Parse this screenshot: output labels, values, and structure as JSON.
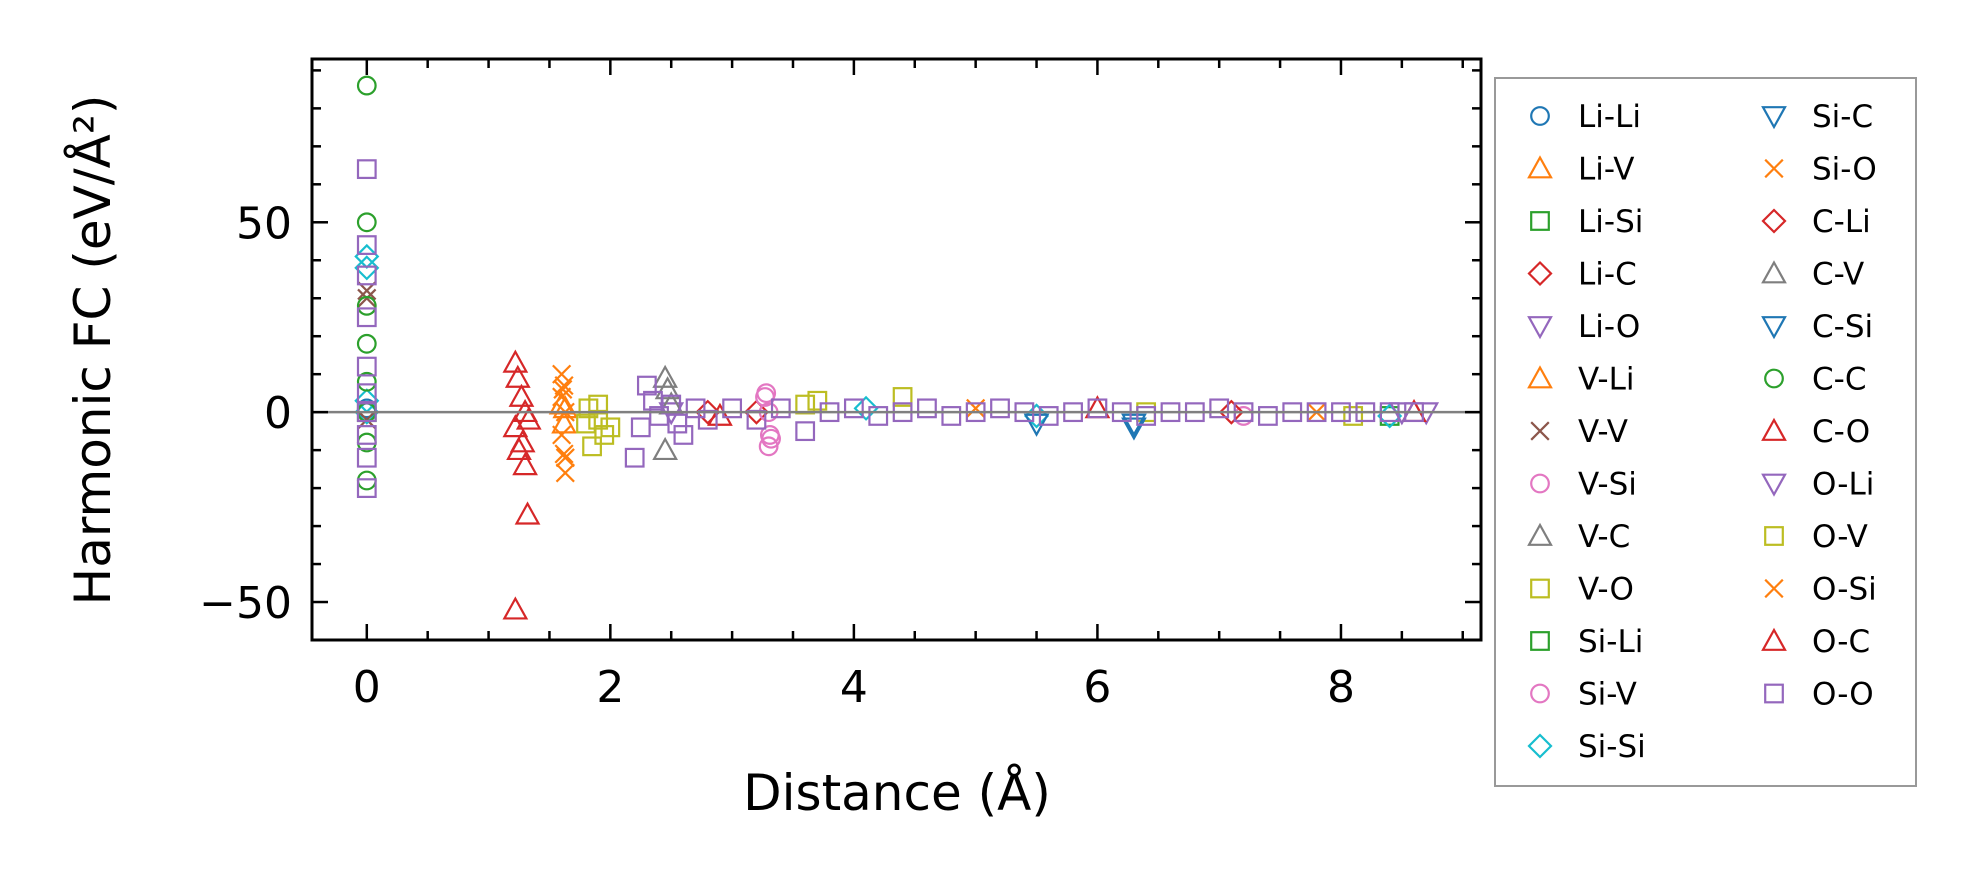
{
  "chart_data": {
    "type": "scatter",
    "xlabel": "Distance (Å)",
    "ylabel": "Harmonic FC (eV/Å²)",
    "xlim": [
      -0.45,
      9.15
    ],
    "ylim": [
      -60,
      93
    ],
    "xticks": [
      0,
      2,
      4,
      6,
      8
    ],
    "xtick_labels": [
      "0",
      "2",
      "4",
      "6",
      "8"
    ],
    "yticks": [
      -50,
      0,
      50
    ],
    "ytick_labels": [
      "−50",
      "0",
      "50"
    ],
    "grid": false,
    "zero_line": true,
    "legend_position": "outside-right",
    "series": [
      {
        "name": "Li-Li",
        "marker": "circle",
        "color": "#1f77b4",
        "points": [
          [
            0,
            0
          ],
          [
            0,
            1
          ]
        ]
      },
      {
        "name": "Li-V",
        "marker": "triangle-up",
        "color": "#ff7f0e",
        "points": [
          [
            1.6,
            2
          ],
          [
            1.62,
            -3
          ]
        ]
      },
      {
        "name": "Li-Si",
        "marker": "square",
        "color": "#2ca02c",
        "points": [
          [
            0,
            0
          ]
        ]
      },
      {
        "name": "Li-C",
        "marker": "diamond",
        "color": "#d62728",
        "points": [
          [
            2.8,
            0
          ],
          [
            3.2,
            0
          ]
        ]
      },
      {
        "name": "Li-O",
        "marker": "triangle-down",
        "color": "#9467bd",
        "points": [
          [
            2.5,
            0
          ],
          [
            8.7,
            0
          ]
        ]
      },
      {
        "name": "V-Li",
        "marker": "triangle-up",
        "color": "#ff7f0e",
        "points": [
          [
            1.63,
            1
          ]
        ]
      },
      {
        "name": "V-V",
        "marker": "x",
        "color": "#8c564b",
        "points": [
          [
            0,
            32
          ],
          [
            0,
            30
          ],
          [
            0,
            -2
          ]
        ]
      },
      {
        "name": "V-Si",
        "marker": "circle",
        "color": "#e377c2",
        "points": [
          [
            3.28,
            5
          ],
          [
            3.3,
            -9
          ],
          [
            3.31,
            -6
          ],
          [
            3.3,
            0
          ],
          [
            7.2,
            -1
          ]
        ]
      },
      {
        "name": "V-C",
        "marker": "triangle-up",
        "color": "#7f7f7f",
        "points": [
          [
            2.45,
            9
          ],
          [
            2.45,
            -10
          ],
          [
            2.5,
            2
          ]
        ]
      },
      {
        "name": "V-O",
        "marker": "square",
        "color": "#bcbd22",
        "points": [
          [
            1.8,
            -3
          ],
          [
            1.85,
            -9
          ],
          [
            1.9,
            2
          ],
          [
            1.95,
            -6
          ],
          [
            2.0,
            -4
          ],
          [
            1.82,
            1
          ],
          [
            3.7,
            3
          ],
          [
            4.4,
            4
          ],
          [
            6.4,
            0
          ],
          [
            8.1,
            -1
          ]
        ]
      },
      {
        "name": "Si-Li",
        "marker": "square",
        "color": "#2ca02c",
        "points": [
          [
            8.4,
            -1
          ]
        ]
      },
      {
        "name": "Si-V",
        "marker": "circle",
        "color": "#e377c2",
        "points": [
          [
            3.27,
            4
          ],
          [
            3.32,
            -7
          ]
        ]
      },
      {
        "name": "Si-Si",
        "marker": "diamond",
        "color": "#17becf",
        "points": [
          [
            0,
            41
          ],
          [
            0,
            38
          ],
          [
            0,
            3
          ],
          [
            0,
            0
          ],
          [
            4.1,
            1
          ],
          [
            5.5,
            -1
          ],
          [
            8.4,
            -1
          ]
        ]
      },
      {
        "name": "Si-C",
        "marker": "triangle-down",
        "color": "#1f77b4",
        "points": [
          [
            5.5,
            -3
          ],
          [
            6.3,
            -4
          ]
        ]
      },
      {
        "name": "Si-O",
        "marker": "x",
        "color": "#ff7f0e",
        "points": [
          [
            1.6,
            10
          ],
          [
            1.62,
            7
          ],
          [
            1.6,
            4
          ],
          [
            1.63,
            0
          ],
          [
            1.6,
            -6
          ],
          [
            1.62,
            -11
          ],
          [
            1.63,
            -16
          ],
          [
            5.0,
            1
          ],
          [
            7.8,
            0
          ]
        ]
      },
      {
        "name": "C-Li",
        "marker": "diamond",
        "color": "#d62728",
        "points": [
          [
            7.1,
            0
          ]
        ]
      },
      {
        "name": "C-V",
        "marker": "triangle-up",
        "color": "#7f7f7f",
        "points": [
          [
            2.47,
            6
          ]
        ]
      },
      {
        "name": "C-Si",
        "marker": "triangle-down",
        "color": "#1f77b4",
        "points": [
          [
            6.3,
            -3
          ]
        ]
      },
      {
        "name": "C-C",
        "marker": "circle",
        "color": "#2ca02c",
        "points": [
          [
            0,
            86
          ],
          [
            0,
            50
          ],
          [
            0,
            28
          ],
          [
            0,
            18
          ],
          [
            0,
            8
          ],
          [
            0,
            0
          ],
          [
            0,
            -8
          ],
          [
            0,
            -18
          ]
        ]
      },
      {
        "name": "C-O",
        "marker": "triangle-up",
        "color": "#d62728",
        "points": [
          [
            1.22,
            13
          ],
          [
            1.24,
            9
          ],
          [
            1.27,
            4
          ],
          [
            1.3,
            0
          ],
          [
            1.22,
            -4
          ],
          [
            1.25,
            -10
          ],
          [
            1.3,
            -14
          ],
          [
            1.32,
            -27
          ],
          [
            1.22,
            -52
          ],
          [
            2.9,
            -1
          ],
          [
            6.0,
            1
          ],
          [
            8.6,
            0
          ]
        ]
      },
      {
        "name": "O-Li",
        "marker": "triangle-down",
        "color": "#9467bd",
        "points": [
          [
            8.5,
            0
          ]
        ]
      },
      {
        "name": "O-V",
        "marker": "square",
        "color": "#bcbd22",
        "points": [
          [
            1.9,
            -2
          ],
          [
            3.6,
            2
          ]
        ]
      },
      {
        "name": "O-Si",
        "marker": "x",
        "color": "#ff7f0e",
        "points": [
          [
            1.63,
            -12
          ],
          [
            1.61,
            6
          ]
        ]
      },
      {
        "name": "O-C",
        "marker": "triangle-up",
        "color": "#d62728",
        "points": [
          [
            1.28,
            -8
          ],
          [
            1.33,
            -2
          ]
        ]
      },
      {
        "name": "O-O",
        "marker": "square",
        "color": "#9467bd",
        "points": [
          [
            0,
            64
          ],
          [
            0,
            44
          ],
          [
            0,
            36
          ],
          [
            0,
            25
          ],
          [
            0,
            12
          ],
          [
            0,
            5
          ],
          [
            0,
            0
          ],
          [
            0,
            -6
          ],
          [
            0,
            -12
          ],
          [
            0,
            -20
          ],
          [
            2.2,
            -12
          ],
          [
            2.25,
            -4
          ],
          [
            2.3,
            7
          ],
          [
            2.35,
            3
          ],
          [
            2.4,
            -1
          ],
          [
            2.5,
            2
          ],
          [
            2.55,
            -3
          ],
          [
            2.6,
            -6
          ],
          [
            2.7,
            1
          ],
          [
            2.8,
            -2
          ],
          [
            3.0,
            1
          ],
          [
            3.2,
            -2
          ],
          [
            3.4,
            1
          ],
          [
            3.6,
            -5
          ],
          [
            3.8,
            0
          ],
          [
            4.0,
            1
          ],
          [
            4.2,
            -1
          ],
          [
            4.4,
            0
          ],
          [
            4.6,
            1
          ],
          [
            4.8,
            -1
          ],
          [
            5.0,
            0
          ],
          [
            5.2,
            1
          ],
          [
            5.4,
            0
          ],
          [
            5.6,
            -1
          ],
          [
            5.8,
            0
          ],
          [
            6.0,
            1
          ],
          [
            6.2,
            0
          ],
          [
            6.4,
            -1
          ],
          [
            6.6,
            0
          ],
          [
            6.8,
            0
          ],
          [
            7.0,
            1
          ],
          [
            7.2,
            0
          ],
          [
            7.4,
            -1
          ],
          [
            7.6,
            0
          ],
          [
            7.8,
            0
          ],
          [
            8.0,
            0
          ],
          [
            8.2,
            0
          ],
          [
            8.4,
            0
          ],
          [
            8.6,
            0
          ]
        ]
      }
    ]
  }
}
